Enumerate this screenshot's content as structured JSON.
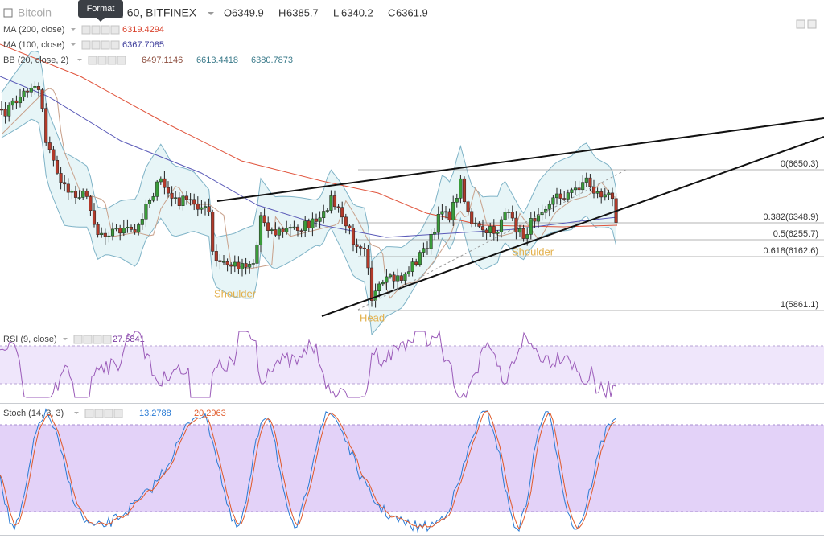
{
  "header": {
    "symbol": "Bitcoin",
    "tooltip": "Format",
    "interval": ", 60, BITFINEX",
    "ohlc": [
      {
        "label": "O",
        "value": "6349.9"
      },
      {
        "label": "H",
        "value": "6385.7"
      },
      {
        "label": "L",
        "value": "6340.2"
      },
      {
        "label": "C",
        "value": "6361.9"
      }
    ]
  },
  "indicators": [
    {
      "name": "MA (200, close)",
      "values": [
        "6319.4294"
      ]
    },
    {
      "name": "MA (100, close)",
      "values": [
        "6367.7085"
      ]
    },
    {
      "name": "BB (20, close, 2)",
      "values": [
        "6497.1146",
        "6613.4418",
        "6380.7873"
      ]
    }
  ],
  "fib_levels": [
    "0(6650.3)",
    "0.382(6348.9)",
    "0.5(6255.7)",
    "0.618(6162.6)",
    "1(5861.1)"
  ],
  "annotations": [
    "Shoulder",
    "Head",
    "Shoulder"
  ],
  "rsi": {
    "name": "RSI (9, close)",
    "values": [
      "27.5841"
    ]
  },
  "stoch": {
    "name": "Stoch (14, 3, 3)",
    "values": [
      "13.2788",
      "20.2963"
    ]
  }
}
